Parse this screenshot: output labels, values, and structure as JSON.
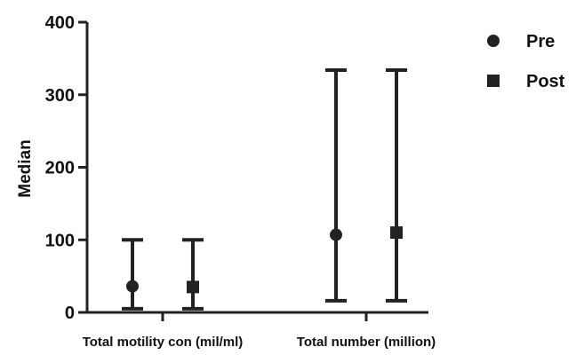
{
  "chart_data": {
    "type": "scatter",
    "ylabel": "Median",
    "xlabel": "",
    "ylim": [
      0,
      400
    ],
    "yticks": [
      0,
      100,
      200,
      300,
      400
    ],
    "grid": false,
    "legend_position": "top-right",
    "categories": [
      "Total motility con (mil/ml)",
      "Total number (million)"
    ],
    "series": [
      {
        "name": "Pre",
        "marker": "circle",
        "color": "#222222",
        "values": [
          36,
          107
        ],
        "lower": [
          5,
          16
        ],
        "upper": [
          100,
          334
        ]
      },
      {
        "name": "Post",
        "marker": "square",
        "color": "#222222",
        "values": [
          35,
          110
        ],
        "lower": [
          5,
          16
        ],
        "upper": [
          100,
          334
        ]
      }
    ]
  }
}
